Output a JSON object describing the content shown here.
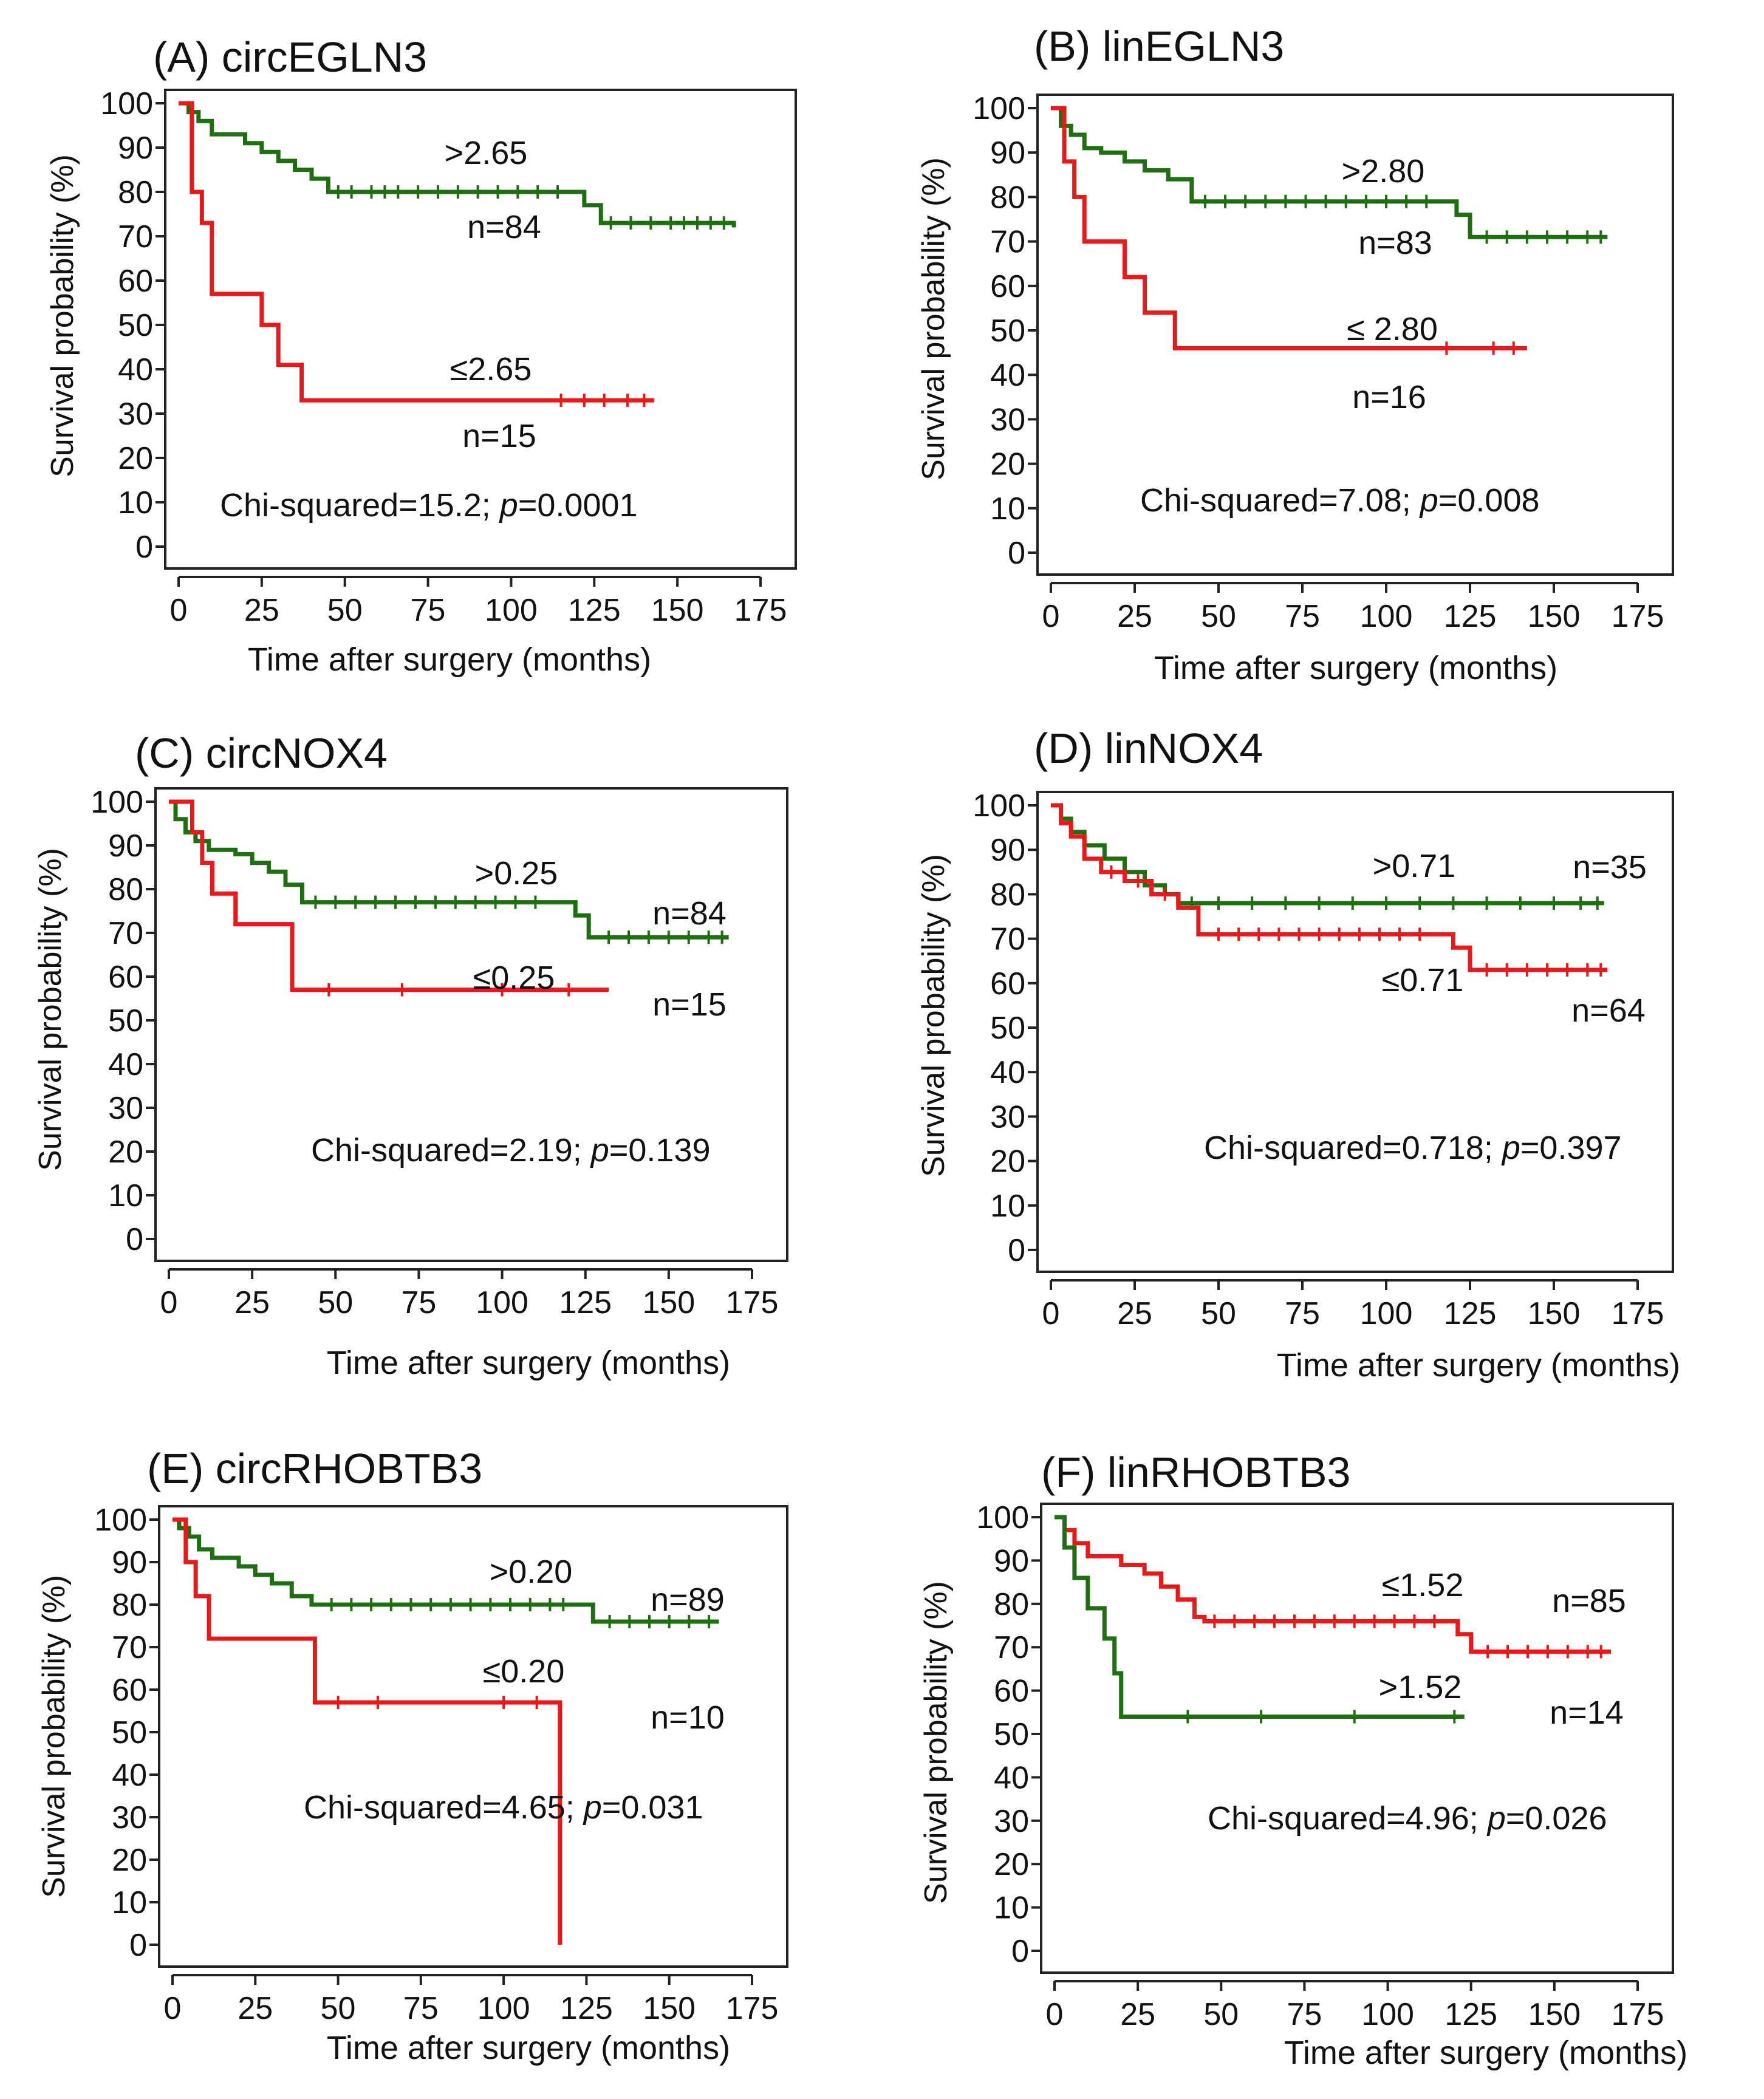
{
  "colors": {
    "green": "#1f6e12",
    "red": "#e8191b"
  },
  "chart_data": [
    {
      "type": "line",
      "title": "(A) circEGLN3",
      "xlabel": "Time after surgery (months)",
      "ylabel": "Survival probability (%)",
      "xlim": [
        0,
        175
      ],
      "ylim": [
        0,
        100
      ],
      "xticks": [
        "0",
        "25",
        "50",
        "75",
        "100",
        "125",
        "150",
        "175"
      ],
      "yticks": [
        "0",
        "10",
        "20",
        "30",
        "40",
        "50",
        "60",
        "70",
        "80",
        "90",
        "100"
      ],
      "series": [
        {
          "name": ">2.65",
          "n_label": "n=84",
          "color": "green",
          "x": [
            0,
            3,
            6,
            10,
            15,
            20,
            25,
            30,
            35,
            40,
            45,
            118,
            122,
            127,
            167
          ],
          "y": [
            100,
            98,
            96,
            93,
            93,
            91,
            89,
            87,
            85,
            83,
            80,
            80,
            77,
            73,
            72
          ],
          "censored": [
            48,
            52,
            58,
            62,
            66,
            72,
            78,
            84,
            90,
            96,
            102,
            108,
            114,
            130,
            136,
            142,
            148,
            152,
            156,
            160,
            164
          ]
        },
        {
          "name": "≤2.65",
          "n_label": "n=15",
          "color": "red",
          "x": [
            0,
            4,
            7,
            10,
            20,
            25,
            30,
            37,
            143
          ],
          "y": [
            100,
            80,
            73,
            57,
            57,
            50,
            41,
            33,
            33
          ],
          "censored": [
            115,
            122,
            128,
            135,
            140
          ]
        }
      ],
      "annotation": {
        "prefix": "Chi-squared=15.2; ",
        "p_symbol": "p",
        "suffix": "=0.0001"
      }
    },
    {
      "type": "line",
      "title": "(B) linEGLN3",
      "xlabel": "Time after surgery (months)",
      "ylabel": "Survival probability (%)",
      "xlim": [
        0,
        175
      ],
      "ylim": [
        0,
        100
      ],
      "xticks": [
        "0",
        "25",
        "50",
        "75",
        "100",
        "125",
        "150",
        "175"
      ],
      "yticks": [
        "0",
        "10",
        "20",
        "30",
        "40",
        "50",
        "60",
        "70",
        "80",
        "90",
        "100"
      ],
      "series": [
        {
          "name": ">2.80",
          "n_label": "n=83",
          "color": "green",
          "x": [
            0,
            3,
            6,
            10,
            15,
            22,
            28,
            35,
            42,
            118,
            121,
            125,
            166
          ],
          "y": [
            100,
            96,
            94,
            91,
            90,
            88,
            86,
            84,
            79,
            79,
            76,
            71,
            71
          ],
          "censored": [
            46,
            52,
            58,
            64,
            70,
            76,
            82,
            88,
            94,
            100,
            106,
            112,
            130,
            136,
            142,
            148,
            154,
            160,
            164
          ]
        },
        {
          "name": "≤ 2.80",
          "n_label": "n=16",
          "color": "red",
          "x": [
            0,
            4,
            7,
            10,
            22,
            28,
            37,
            142
          ],
          "y": [
            100,
            88,
            80,
            70,
            62,
            54,
            46,
            46
          ],
          "censored": [
            118,
            132,
            138
          ]
        }
      ],
      "annotation": {
        "prefix": "Chi-squared=7.08; ",
        "p_symbol": "p",
        "suffix": "=0.008"
      }
    },
    {
      "type": "line",
      "title": "(C) circNOX4",
      "xlabel": "Time after surgery (months)",
      "ylabel": "Survival probability (%)",
      "xlim": [
        0,
        175
      ],
      "ylim": [
        0,
        100
      ],
      "xticks": [
        "0",
        "25",
        "50",
        "75",
        "100",
        "125",
        "150",
        "175"
      ],
      "yticks": [
        "0",
        "10",
        "20",
        "30",
        "40",
        "50",
        "60",
        "70",
        "80",
        "90",
        "100"
      ],
      "series": [
        {
          "name": ">0.25",
          "n_label": "n=84",
          "color": "green",
          "x": [
            0,
            2,
            5,
            8,
            12,
            20,
            25,
            30,
            35,
            40,
            118,
            122,
            126,
            168
          ],
          "y": [
            100,
            96,
            93,
            91,
            89,
            88,
            86,
            84,
            81,
            77,
            77,
            74,
            69,
            69
          ],
          "censored": [
            44,
            50,
            56,
            62,
            68,
            74,
            80,
            86,
            92,
            98,
            104,
            110,
            132,
            138,
            144,
            150,
            156,
            162,
            166
          ]
        },
        {
          "name": "≤0.25",
          "n_label": "n=15",
          "color": "red",
          "x": [
            0,
            7,
            10,
            13,
            20,
            37,
            132
          ],
          "y": [
            100,
            93,
            86,
            79,
            72,
            57,
            57
          ],
          "censored": [
            48,
            70,
            100,
            120
          ]
        }
      ],
      "annotation": {
        "prefix": "Chi-squared=2.19; ",
        "p_symbol": "p",
        "suffix": "=0.139"
      }
    },
    {
      "type": "line",
      "title": "(D) linNOX4",
      "xlabel": "Time after surgery (months)",
      "ylabel": "Survival probability (%)",
      "xlim": [
        0,
        175
      ],
      "ylim": [
        0,
        100
      ],
      "xticks": [
        "0",
        "25",
        "50",
        "75",
        "100",
        "125",
        "150",
        "175"
      ],
      "yticks": [
        "0",
        "10",
        "20",
        "30",
        "40",
        "50",
        "60",
        "70",
        "80",
        "90",
        "100"
      ],
      "series": [
        {
          "name": ">0.71",
          "n_label": "n=35",
          "color": "green",
          "x": [
            0,
            3,
            6,
            10,
            16,
            22,
            28,
            34,
            38,
            165
          ],
          "y": [
            100,
            97,
            94,
            91,
            88,
            85,
            82,
            80,
            78,
            78
          ],
          "censored": [
            42,
            50,
            60,
            70,
            80,
            90,
            100,
            110,
            120,
            130,
            140,
            150,
            158,
            163
          ]
        },
        {
          "name": "≤0.71",
          "n_label": "n=64",
          "color": "red",
          "x": [
            0,
            3,
            6,
            10,
            15,
            22,
            30,
            38,
            44,
            117,
            120,
            125,
            166
          ],
          "y": [
            100,
            96,
            93,
            88,
            85,
            83,
            80,
            77,
            71,
            71,
            68,
            63,
            63
          ],
          "censored": [
            18,
            26,
            34,
            50,
            56,
            62,
            68,
            74,
            80,
            86,
            92,
            98,
            104,
            110,
            130,
            136,
            142,
            148,
            154,
            160,
            164
          ]
        }
      ],
      "annotation": {
        "prefix": "Chi-squared=0.718; ",
        "p_symbol": "p",
        "suffix": "=0.397"
      }
    },
    {
      "type": "line",
      "title": "(E) circRHOBTB3",
      "xlabel": "Time after surgery (months)",
      "ylabel": "Survival probability (%)",
      "xlim": [
        0,
        175
      ],
      "ylim": [
        0,
        100
      ],
      "xticks": [
        "0",
        "25",
        "50",
        "75",
        "100",
        "125",
        "150",
        "175"
      ],
      "yticks": [
        "0",
        "10",
        "20",
        "30",
        "40",
        "50",
        "60",
        "70",
        "80",
        "90",
        "100"
      ],
      "series": [
        {
          "name": ">0.20",
          "n_label": "n=89",
          "color": "green",
          "x": [
            0,
            2,
            5,
            8,
            12,
            20,
            25,
            30,
            36,
            42,
            124,
            127,
            165
          ],
          "y": [
            100,
            98,
            96,
            93,
            91,
            89,
            87,
            85,
            82,
            80,
            80,
            76,
            76
          ],
          "censored": [
            48,
            54,
            60,
            66,
            72,
            78,
            84,
            90,
            96,
            102,
            108,
            114,
            118,
            132,
            138,
            144,
            150,
            156,
            162
          ]
        },
        {
          "name": "≤0.20",
          "n_label": "n=10",
          "color": "red",
          "x": [
            0,
            4,
            7,
            11,
            43,
            117,
            117
          ],
          "y": [
            100,
            90,
            82,
            72,
            57,
            57,
            0
          ],
          "censored": [
            50,
            62,
            100,
            110
          ]
        }
      ],
      "annotation": {
        "prefix": "Chi-squared=4.65; ",
        "p_symbol": "p",
        "suffix": "=0.031"
      }
    },
    {
      "type": "line",
      "title": "(F) linRHOBTB3",
      "xlabel": "Time after surgery (months)",
      "ylabel": "Survival probability (%)",
      "xlim": [
        0,
        175
      ],
      "ylim": [
        0,
        100
      ],
      "xticks": [
        "0",
        "25",
        "50",
        "75",
        "100",
        "125",
        "150",
        "175"
      ],
      "yticks": [
        "0",
        "10",
        "20",
        "30",
        "40",
        "50",
        "60",
        "70",
        "80",
        "90",
        "100"
      ],
      "series": [
        {
          "name": "≤1.52",
          "n_label": "n=85",
          "color": "red",
          "x": [
            0,
            3,
            6,
            10,
            20,
            27,
            32,
            37,
            42,
            45,
            118,
            121,
            125,
            167
          ],
          "y": [
            100,
            97,
            94,
            91,
            89,
            87,
            84,
            81,
            77,
            76,
            76,
            73,
            69,
            69
          ],
          "censored": [
            48,
            54,
            60,
            66,
            72,
            78,
            84,
            90,
            96,
            102,
            108,
            114,
            130,
            136,
            142,
            148,
            154,
            160,
            164
          ]
        },
        {
          "name": ">1.52",
          "n_label": "n=14",
          "color": "green",
          "x": [
            0,
            3,
            6,
            10,
            15,
            18,
            20,
            123
          ],
          "y": [
            100,
            93,
            86,
            79,
            72,
            64,
            54,
            54
          ],
          "censored": [
            40,
            62,
            90,
            120
          ]
        }
      ],
      "annotation": {
        "prefix": "Chi-squared=4.96; ",
        "p_symbol": "p",
        "suffix": "=0.026"
      }
    }
  ]
}
